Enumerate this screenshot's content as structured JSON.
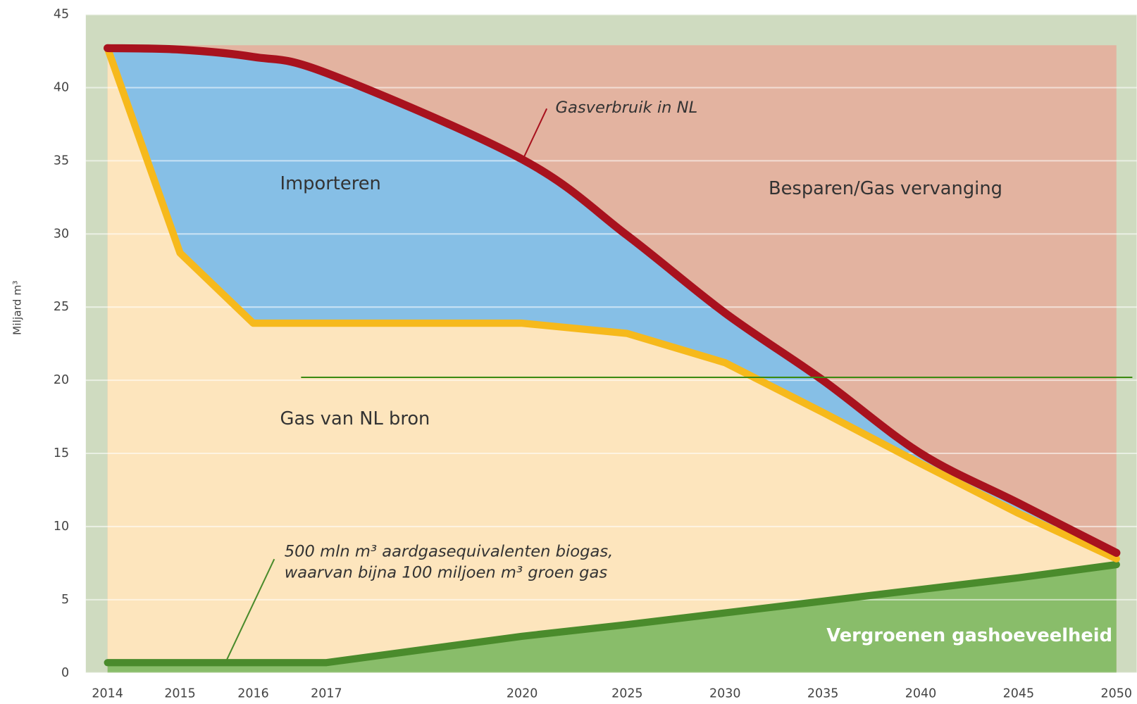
{
  "chart_data": {
    "type": "area",
    "y_label": "Miljard m³",
    "categories": [
      "2014",
      "2015",
      "2016",
      "2017",
      "2020",
      "2025",
      "2030",
      "2035",
      "2040",
      "2045",
      "2050"
    ],
    "series": [
      {
        "name": "Gasverbruik in NL",
        "color": "#a8121e",
        "values": [
          42.7,
          42.6,
          42.1,
          41.0,
          35.1,
          29.9,
          24.6,
          20.0,
          15.0,
          11.6,
          8.2
        ]
      },
      {
        "name": "Gas van NL bron",
        "color": "#f6b91c",
        "values": [
          42.7,
          28.7,
          23.9,
          23.9,
          23.9,
          23.2,
          21.2,
          17.8,
          14.3,
          10.9,
          7.8
        ]
      },
      {
        "name": "Vergroenen gashoeveelheid",
        "color": "#4a8b2c",
        "values": [
          0.7,
          0.7,
          0.7,
          0.7,
          2.5,
          3.3,
          4.1,
          4.9,
          5.7,
          6.5,
          7.4
        ]
      }
    ],
    "region_labels": [
      "Importeren",
      "Besparen/Gas vervanging"
    ],
    "annotations": [
      "500 mln m³ aardgasequivalenten biogas,",
      "waarvan bijna 100 miljoen m³ groen gas"
    ],
    "ylim": [
      0,
      45
    ],
    "yticks": [
      0,
      5,
      10,
      15,
      20,
      25,
      30,
      35,
      40,
      45
    ],
    "grid": true
  }
}
